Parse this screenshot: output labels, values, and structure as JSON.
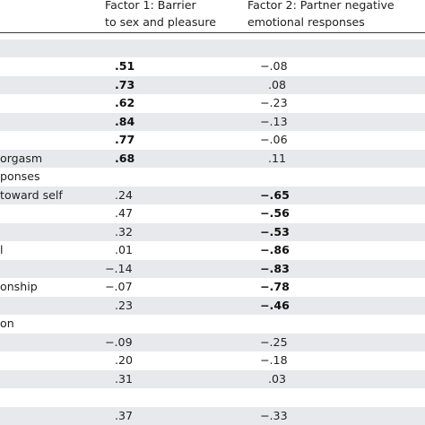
{
  "header": {
    "factor1": "Factor 1: Barrier\nto sex and pleasure",
    "factor2": "Factor 2: Partner negative\nemotional responses"
  },
  "rows": [
    {
      "label": "",
      "f1": "",
      "f2": "",
      "f1_bold": false,
      "f2_bold": false
    },
    {
      "label": "",
      "f1": ".51",
      "f2": "−.08",
      "f1_bold": true,
      "f2_bold": false
    },
    {
      "label": "",
      "f1": ".73",
      "f2": ".08",
      "f1_bold": true,
      "f2_bold": false
    },
    {
      "label": "",
      "f1": ".62",
      "f2": "−.23",
      "f1_bold": true,
      "f2_bold": false
    },
    {
      "label": "",
      "f1": ".84",
      "f2": "−.13",
      "f1_bold": true,
      "f2_bold": false
    },
    {
      "label": "",
      "f1": ".77",
      "f2": "−.06",
      "f1_bold": true,
      "f2_bold": false
    },
    {
      "label": "orgasm",
      "f1": ".68",
      "f2": ".11",
      "f1_bold": true,
      "f2_bold": false
    },
    {
      "label": "ponses",
      "f1": "",
      "f2": "",
      "f1_bold": false,
      "f2_bold": false
    },
    {
      "label": "toward self",
      "f1": ".24",
      "f2": "−.65",
      "f1_bold": false,
      "f2_bold": true
    },
    {
      "label": "",
      "f1": ".47",
      "f2": "−.56",
      "f1_bold": false,
      "f2_bold": true
    },
    {
      "label": "",
      "f1": ".32",
      "f2": "−.53",
      "f1_bold": false,
      "f2_bold": true
    },
    {
      "label": "l",
      "f1": ".01",
      "f2": "−.86",
      "f1_bold": false,
      "f2_bold": true
    },
    {
      "label": "",
      "f1": "−.14",
      "f2": "−.83",
      "f1_bold": false,
      "f2_bold": true
    },
    {
      "label": "onship",
      "f1": "−.07",
      "f2": "−.78",
      "f1_bold": false,
      "f2_bold": true
    },
    {
      "label": "",
      "f1": ".23",
      "f2": "−.46",
      "f1_bold": false,
      "f2_bold": true
    },
    {
      "label": "on",
      "f1": "",
      "f2": "",
      "f1_bold": false,
      "f2_bold": false
    },
    {
      "label": "",
      "f1": "−.09",
      "f2": "−.25",
      "f1_bold": false,
      "f2_bold": false
    },
    {
      "label": "",
      "f1": ".20",
      "f2": "−.18",
      "f1_bold": false,
      "f2_bold": false
    },
    {
      "label": "",
      "f1": ".31",
      "f2": ".03",
      "f1_bold": false,
      "f2_bold": false
    },
    {
      "label": "",
      "f1": "",
      "f2": "",
      "f1_bold": false,
      "f2_bold": false
    },
    {
      "label": "",
      "f1": ".37",
      "f2": "−.33",
      "f1_bold": false,
      "f2_bold": false
    }
  ]
}
